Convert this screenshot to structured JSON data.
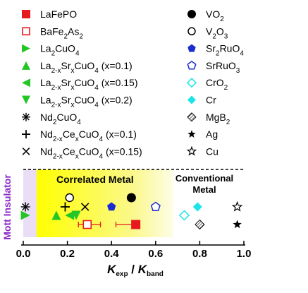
{
  "chart_data": {
    "type": "scatter",
    "xlabel": {
      "main_k1": "K",
      "sub1": "exp",
      "slash": " / ",
      "main_k2": "K",
      "sub2": "band"
    },
    "xlim": [
      0.0,
      1.0
    ],
    "xticks": [
      "0.0",
      "0.2",
      "0.4",
      "0.6",
      "0.8",
      "1.0"
    ],
    "region_labels": {
      "mott": "Mott Insulator",
      "correlated": "Correlated Metal",
      "conventional_line1": "Conventional",
      "conventional_line2": "Metal"
    },
    "regions": {
      "mott_max": 0.06,
      "correlated_max": 0.68
    },
    "colors": {
      "red": "#e8191d",
      "green": "#23c625",
      "blue": "#1a2bd0",
      "cyan": "#1de4e9",
      "black": "#000000",
      "purple": "#8b27c9"
    },
    "legend_left": [
      {
        "marker": "square-filled",
        "color": "red",
        "segments": [
          [
            "LaFePO",
            ""
          ]
        ]
      },
      {
        "marker": "square-open",
        "color": "red",
        "segments": [
          [
            "BaFe",
            ""
          ],
          [
            "2",
            "sub"
          ],
          [
            "As",
            ""
          ],
          [
            "2",
            "sub"
          ]
        ]
      },
      {
        "marker": "tri-right",
        "color": "green",
        "segments": [
          [
            "La",
            ""
          ],
          [
            "2",
            "sub"
          ],
          [
            "CuO",
            ""
          ],
          [
            "4",
            "sub"
          ]
        ]
      },
      {
        "marker": "tri-up",
        "color": "green",
        "segments": [
          [
            "La",
            ""
          ],
          [
            "2-x",
            "sub"
          ],
          [
            "Sr",
            ""
          ],
          [
            "x",
            "sub"
          ],
          [
            "CuO",
            ""
          ],
          [
            "4",
            "sub"
          ],
          [
            " (x=0.1)",
            ""
          ]
        ]
      },
      {
        "marker": "tri-left",
        "color": "green",
        "segments": [
          [
            "La",
            ""
          ],
          [
            "2-x",
            "sub"
          ],
          [
            "Sr",
            ""
          ],
          [
            "x",
            "sub"
          ],
          [
            "CuO",
            ""
          ],
          [
            "4",
            "sub"
          ],
          [
            " (x=0.15)",
            ""
          ]
        ]
      },
      {
        "marker": "tri-down",
        "color": "green",
        "segments": [
          [
            "La",
            ""
          ],
          [
            "2-x",
            "sub"
          ],
          [
            "Sr",
            ""
          ],
          [
            "x",
            "sub"
          ],
          [
            "CuO",
            ""
          ],
          [
            "4",
            "sub"
          ],
          [
            " (x=0.2)",
            ""
          ]
        ]
      },
      {
        "marker": "asterisk",
        "color": "black",
        "segments": [
          [
            "Nd",
            ""
          ],
          [
            "2",
            "sub"
          ],
          [
            "CuO",
            ""
          ],
          [
            "4",
            "sub"
          ]
        ]
      },
      {
        "marker": "plus",
        "color": "black",
        "segments": [
          [
            "Nd",
            ""
          ],
          [
            "2-x",
            "sub"
          ],
          [
            "Ce",
            ""
          ],
          [
            "x",
            "sub"
          ],
          [
            "CuO",
            ""
          ],
          [
            "4",
            "sub"
          ],
          [
            " (x=0.1)",
            ""
          ]
        ]
      },
      {
        "marker": "cross",
        "color": "black",
        "segments": [
          [
            "Nd",
            ""
          ],
          [
            "2-x",
            "sub"
          ],
          [
            "Ce",
            ""
          ],
          [
            "x",
            "sub"
          ],
          [
            "CuO",
            ""
          ],
          [
            "4",
            "sub"
          ],
          [
            " (x=0.15)",
            ""
          ]
        ]
      }
    ],
    "legend_right": [
      {
        "marker": "circle-filled",
        "color": "black",
        "segments": [
          [
            "VO",
            ""
          ],
          [
            "2",
            "sub"
          ]
        ]
      },
      {
        "marker": "circle-open",
        "color": "black",
        "segments": [
          [
            "V",
            ""
          ],
          [
            "2",
            "sub"
          ],
          [
            "O",
            ""
          ],
          [
            "3",
            "sub"
          ]
        ]
      },
      {
        "marker": "pentagon-filled",
        "color": "blue",
        "segments": [
          [
            "Sr",
            ""
          ],
          [
            "2",
            "sub"
          ],
          [
            "RuO",
            ""
          ],
          [
            "4",
            "sub"
          ]
        ]
      },
      {
        "marker": "pentagon-open",
        "color": "blue",
        "segments": [
          [
            "SrRuO",
            ""
          ],
          [
            "3",
            "sub"
          ]
        ]
      },
      {
        "marker": "diamond-open",
        "color": "cyan",
        "segments": [
          [
            "CrO",
            ""
          ],
          [
            "2",
            "sub"
          ]
        ]
      },
      {
        "marker": "diamond-filled",
        "color": "cyan",
        "segments": [
          [
            "Cr",
            ""
          ]
        ]
      },
      {
        "marker": "hatched",
        "color": "black",
        "segments": [
          [
            "MgB",
            ""
          ],
          [
            "2",
            "sub"
          ]
        ]
      },
      {
        "marker": "star-filled",
        "color": "black",
        "segments": [
          [
            "Ag",
            ""
          ]
        ]
      },
      {
        "marker": "star-open",
        "color": "black",
        "segments": [
          [
            "Cu",
            ""
          ]
        ]
      }
    ],
    "points": [
      {
        "name": "LaFePO",
        "x": 0.51,
        "row": 2,
        "xerr_lo": 0.42,
        "xerr_hi": 0.51,
        "marker": "square-filled",
        "color": "red"
      },
      {
        "name": "BaFe2As2",
        "x": 0.29,
        "row": 2,
        "xerr_lo": 0.25,
        "xerr_hi": 0.35,
        "marker": "square-open",
        "color": "red"
      },
      {
        "name": "La2CuO4",
        "x": 0.01,
        "row": 1.5,
        "marker": "tri-right",
        "color": "green"
      },
      {
        "name": "La2-xSrxCuO4 (x=0.1)",
        "x": 0.15,
        "row": 1.5,
        "marker": "tri-up",
        "color": "green"
      },
      {
        "name": "La2-xSrxCuO4 (x=0.15)",
        "x": 0.21,
        "row": 1.5,
        "marker": "tri-left",
        "color": "green"
      },
      {
        "name": "La2-xSrxCuO4 (x=0.2)",
        "x": 0.24,
        "row": 1.5,
        "marker": "tri-down",
        "color": "green"
      },
      {
        "name": "Nd2CuO4",
        "x": 0.01,
        "row": 1,
        "marker": "asterisk",
        "color": "black"
      },
      {
        "name": "Nd2-xCexCuO4 (x=0.1)",
        "x": 0.19,
        "row": 1,
        "marker": "plus",
        "color": "black"
      },
      {
        "name": "Nd2-xCexCuO4 (x=0.15)",
        "x": 0.28,
        "row": 1,
        "marker": "cross",
        "color": "black"
      },
      {
        "name": "VO2",
        "x": 0.49,
        "row": 0.6,
        "marker": "circle-filled",
        "color": "black"
      },
      {
        "name": "V2O3",
        "x": 0.21,
        "row": 0.6,
        "marker": "circle-open",
        "color": "black"
      },
      {
        "name": "Sr2RuO4",
        "x": 0.4,
        "row": 1,
        "marker": "pentagon-filled",
        "color": "blue"
      },
      {
        "name": "SrRuO3",
        "x": 0.6,
        "row": 1,
        "marker": "pentagon-open",
        "color": "blue"
      },
      {
        "name": "CrO2",
        "x": 0.73,
        "row": 1.5,
        "marker": "diamond-open",
        "color": "cyan"
      },
      {
        "name": "Cr",
        "x": 0.79,
        "row": 1,
        "marker": "diamond-filled",
        "color": "cyan"
      },
      {
        "name": "MgB2",
        "x": 0.8,
        "row": 2,
        "marker": "hatched",
        "color": "black"
      },
      {
        "name": "Ag",
        "x": 0.97,
        "row": 2,
        "marker": "star-filled",
        "color": "black"
      },
      {
        "name": "Cu",
        "x": 0.97,
        "row": 1,
        "marker": "star-open",
        "color": "black"
      }
    ]
  }
}
